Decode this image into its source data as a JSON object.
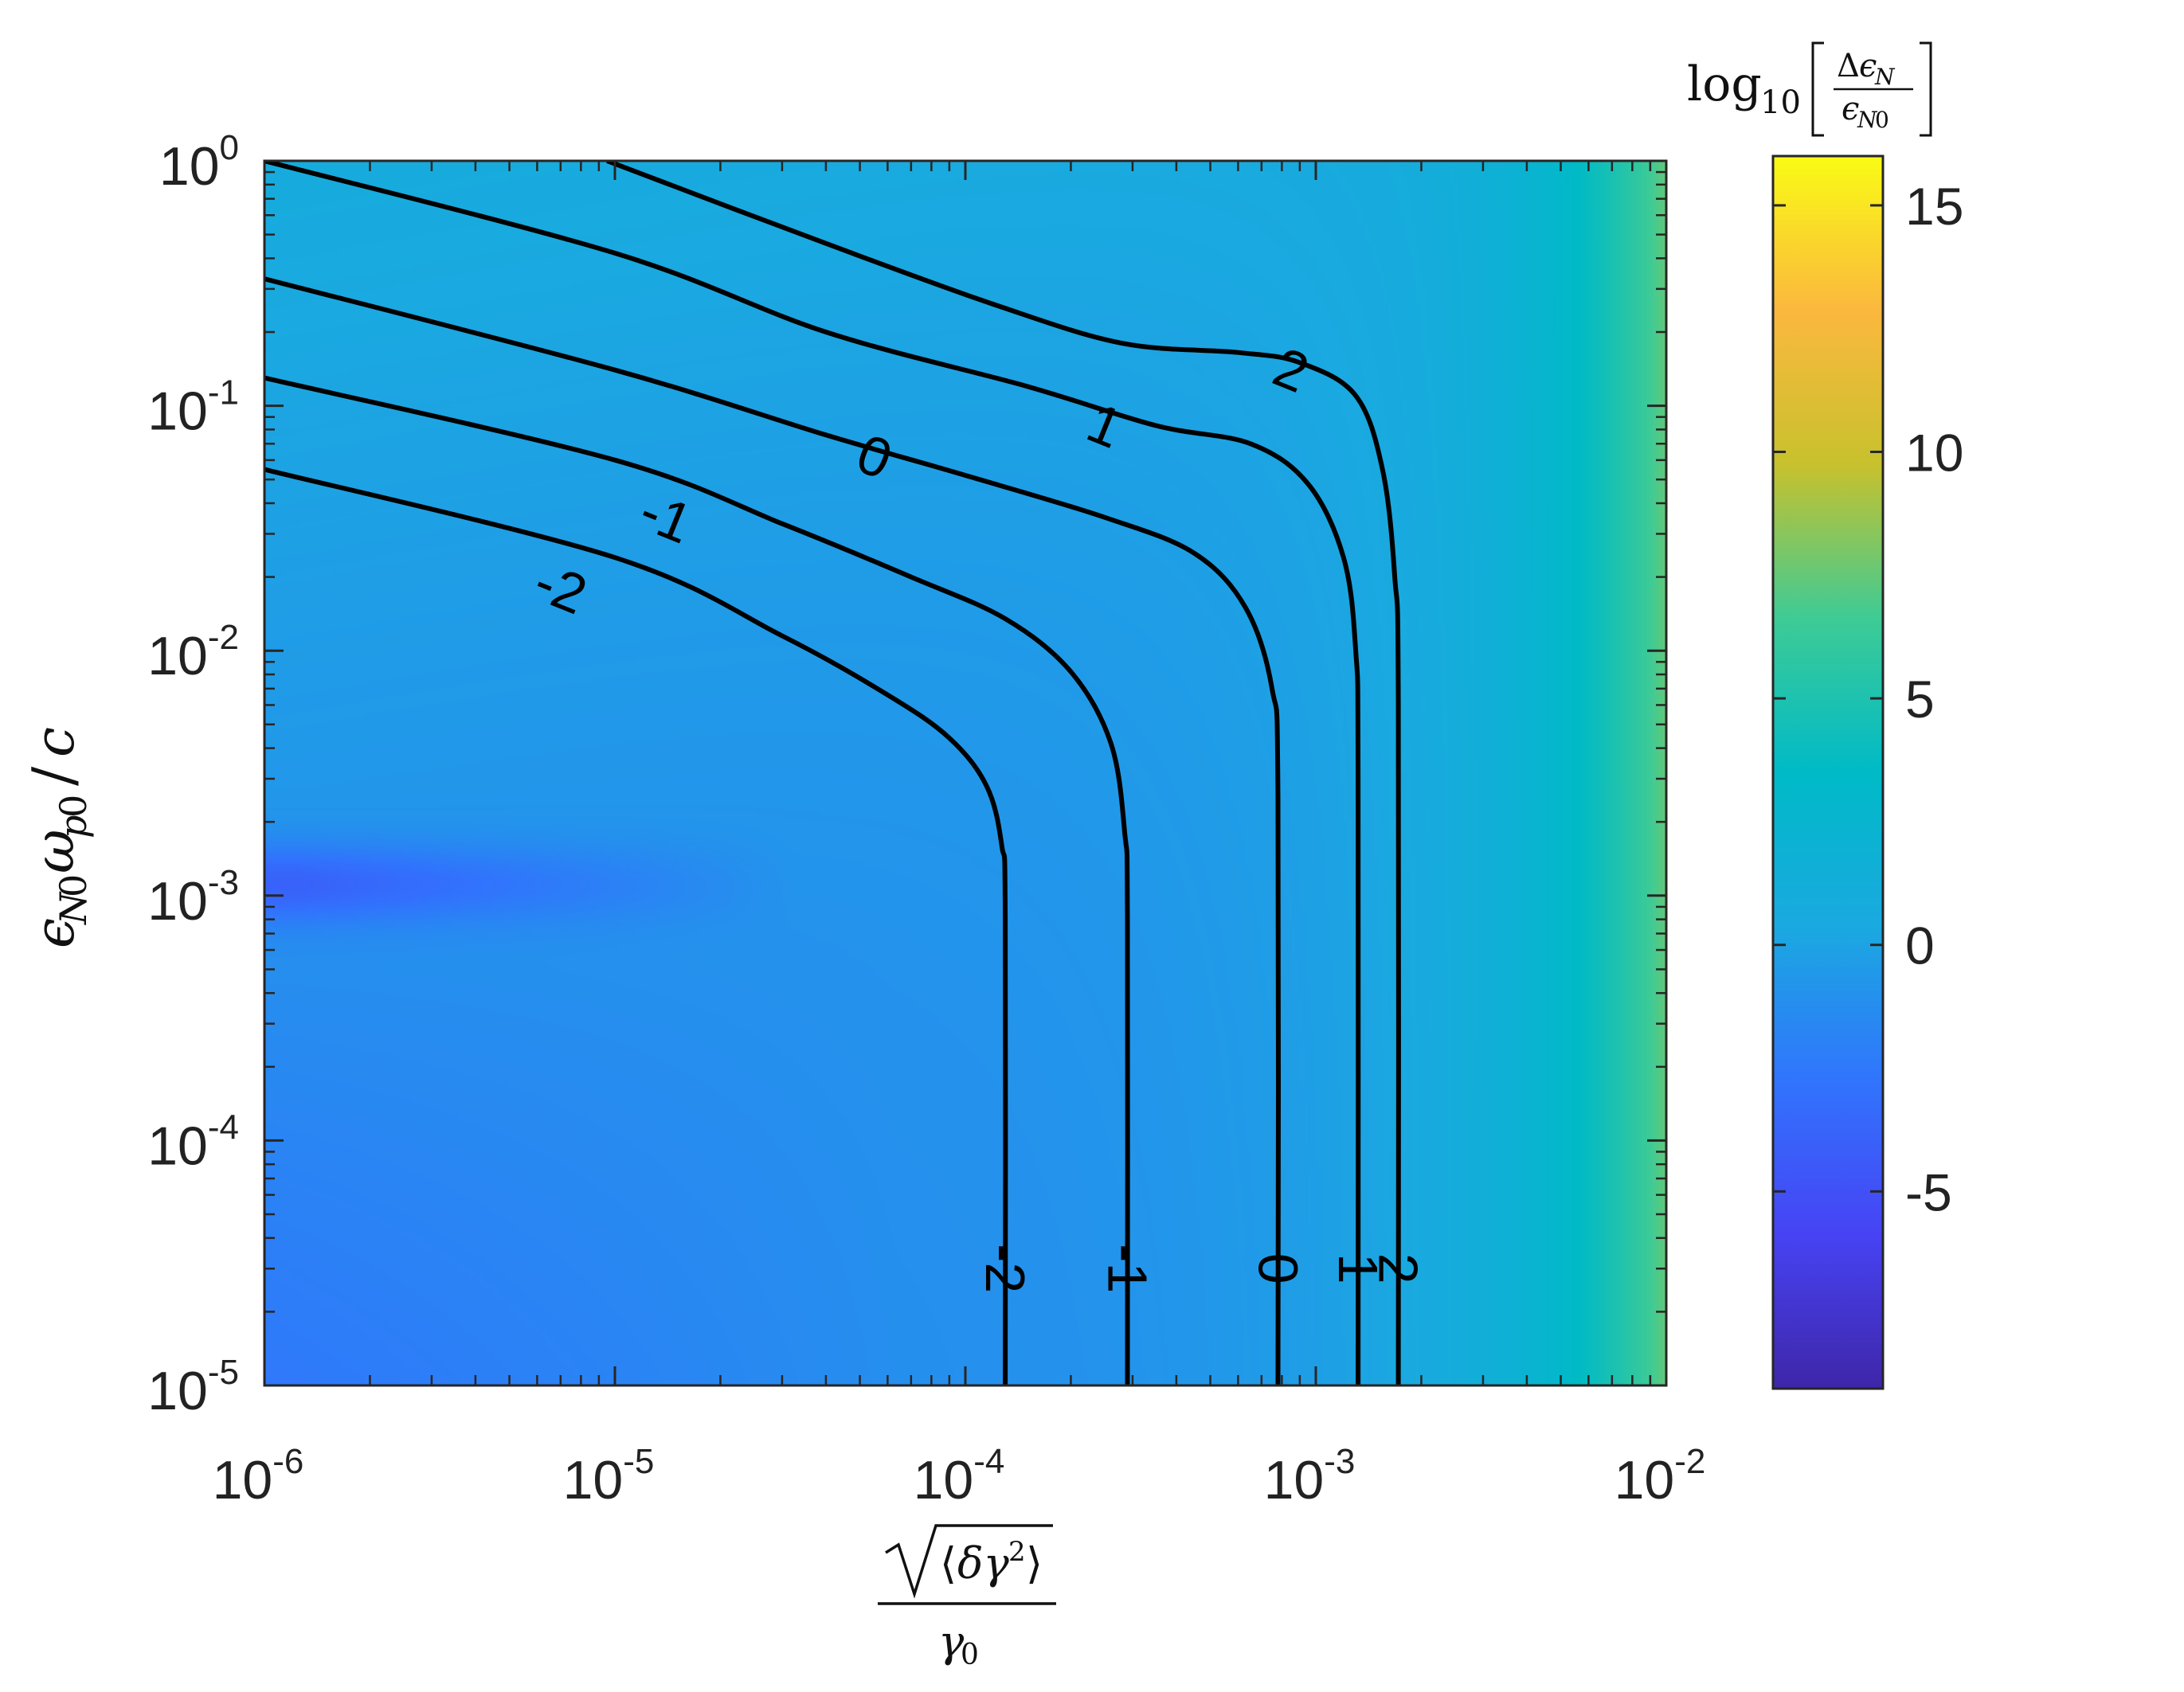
{
  "chart_data": {
    "type": "heatmap",
    "subtype": "filled-contour-with-contour-lines",
    "x_scale": "log",
    "y_scale": "log",
    "xlim": [
      1e-06,
      0.01
    ],
    "ylim": [
      1e-05,
      1.0
    ],
    "x_ticks": [
      {
        "value": 1e-06,
        "base": "10",
        "exp": "-6"
      },
      {
        "value": 1e-05,
        "base": "10",
        "exp": "-5"
      },
      {
        "value": 0.0001,
        "base": "10",
        "exp": "-4"
      },
      {
        "value": 0.001,
        "base": "10",
        "exp": "-3"
      },
      {
        "value": 0.01,
        "base": "10",
        "exp": "-2"
      }
    ],
    "y_ticks": [
      {
        "value": 1.0,
        "base": "10",
        "exp": "0"
      },
      {
        "value": 0.1,
        "base": "10",
        "exp": "-1"
      },
      {
        "value": 0.01,
        "base": "10",
        "exp": "-2"
      },
      {
        "value": 0.001,
        "base": "10",
        "exp": "-3"
      },
      {
        "value": 0.0001,
        "base": "10",
        "exp": "-4"
      },
      {
        "value": 1e-05,
        "base": "10",
        "exp": "-5"
      }
    ],
    "colorbar": {
      "range": [
        -9,
        16
      ],
      "ticks": [
        {
          "value": 15,
          "label": "15"
        },
        {
          "value": 10,
          "label": "10"
        },
        {
          "value": 5,
          "label": "5"
        },
        {
          "value": 0,
          "label": "0"
        },
        {
          "value": -5,
          "label": "-5"
        }
      ],
      "colormap": [
        "#3e26a8",
        "#4743f4",
        "#3174fd",
        "#1aa9e0",
        "#00bac7",
        "#3ecb95",
        "#c8c12d",
        "#fbb83e",
        "#f9fb15"
      ]
    },
    "contour_levels": [
      {
        "level": -2,
        "label": "-2",
        "points": [
          [
            1e-06,
            0.055
          ],
          [
            1e-05,
            0.024
          ],
          [
            3e-05,
            0.0115
          ],
          [
            6e-05,
            0.0066
          ],
          [
            9e-05,
            0.0044
          ],
          [
            0.000115,
            0.0028
          ],
          [
            0.000127,
            0.0016
          ],
          [
            0.00013,
            0.0008
          ],
          [
            0.00013,
            1e-05
          ]
        ],
        "labels_at": [
          [
            7e-06,
            0.018
          ],
          [
            0.00013,
            3e-05
          ]
        ]
      },
      {
        "level": -1,
        "label": "-1",
        "points": [
          [
            1e-06,
            0.13
          ],
          [
            1e-05,
            0.06
          ],
          [
            3e-05,
            0.033
          ],
          [
            7e-05,
            0.02
          ],
          [
            0.00013,
            0.0135
          ],
          [
            0.0002,
            0.0082
          ],
          [
            0.00026,
            0.0042
          ],
          [
            0.000285,
            0.0018
          ],
          [
            0.00029,
            0.0008
          ],
          [
            0.00029,
            1e-05
          ]
        ],
        "labels_at": [
          [
            1.4e-05,
            0.035
          ],
          [
            0.00029,
            3e-05
          ]
        ]
      },
      {
        "level": 0,
        "label": "0",
        "points": [
          [
            1e-06,
            0.33
          ],
          [
            1e-05,
            0.14
          ],
          [
            4e-05,
            0.076
          ],
          [
            0.0001,
            0.052
          ],
          [
            0.00025,
            0.035
          ],
          [
            0.00045,
            0.025
          ],
          [
            0.00063,
            0.015
          ],
          [
            0.00075,
            0.007
          ],
          [
            0.00078,
            0.0025
          ],
          [
            0.00078,
            1e-05
          ]
        ],
        "labels_at": [
          [
            5.5e-05,
            0.062
          ],
          [
            0.00078,
            3e-05
          ]
        ]
      },
      {
        "level": 1,
        "label": "1",
        "points": [
          [
            1e-06,
            1.0
          ],
          [
            1e-05,
            0.42
          ],
          [
            4e-05,
            0.2
          ],
          [
            0.00015,
            0.12
          ],
          [
            0.00035,
            0.083
          ],
          [
            0.00065,
            0.07
          ],
          [
            0.00095,
            0.048
          ],
          [
            0.0012,
            0.024
          ],
          [
            0.0013,
            0.01
          ],
          [
            0.00132,
            0.003
          ],
          [
            0.00132,
            1e-05
          ]
        ],
        "labels_at": [
          [
            0.00025,
            0.083
          ],
          [
            0.00132,
            3e-05
          ]
        ]
      },
      {
        "level": 2,
        "label": "2",
        "points": [
          [
            9.5e-06,
            1.0
          ],
          [
            4e-05,
            0.46
          ],
          [
            0.00012,
            0.26
          ],
          [
            0.00028,
            0.18
          ],
          [
            0.0006,
            0.165
          ],
          [
            0.0009,
            0.15
          ],
          [
            0.0013,
            0.11
          ],
          [
            0.00155,
            0.055
          ],
          [
            0.00168,
            0.02
          ],
          [
            0.00172,
            0.006
          ],
          [
            0.00172,
            1e-05
          ]
        ],
        "labels_at": [
          [
            0.00085,
            0.14
          ],
          [
            0.00172,
            3e-05
          ]
        ]
      }
    ]
  }
}
